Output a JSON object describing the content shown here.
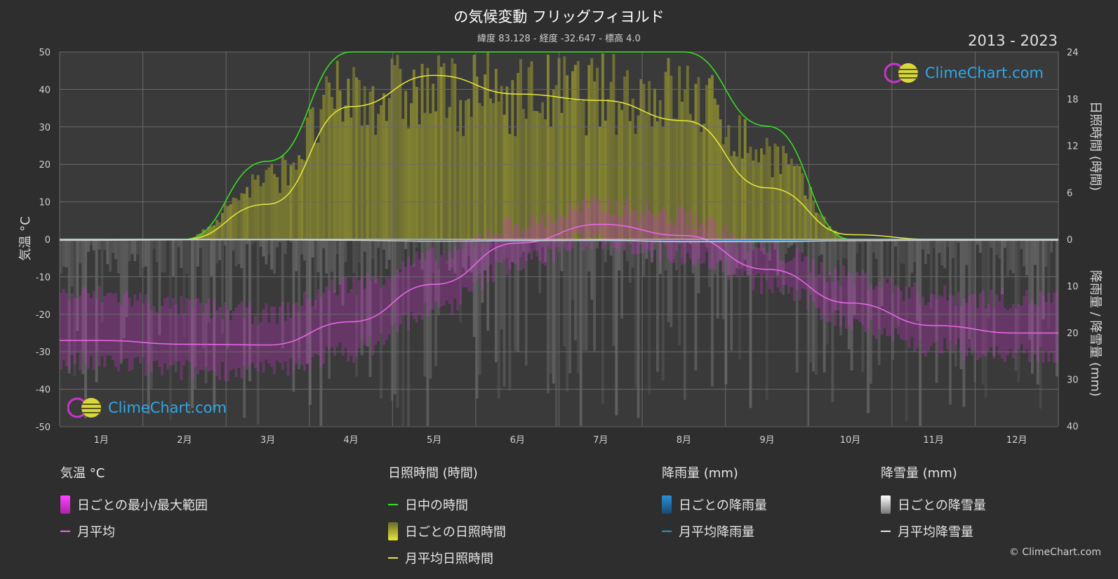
{
  "header": {
    "title": "の気候変動 フリッグフィヨルド",
    "subtitle": "緯度 83.128 - 経度 -32.647 - 標高 4.0",
    "years": "2013 - 2023"
  },
  "axes": {
    "left_label": "気温 °C",
    "right_top_label": "日照時間 (時間)",
    "right_bottom_label": "降雨量 / 降雪量 (mm)",
    "months": [
      "1月",
      "2月",
      "3月",
      "4月",
      "5月",
      "6月",
      "7月",
      "8月",
      "9月",
      "10月",
      "11月",
      "12月"
    ],
    "left_ticks": [
      "50",
      "40",
      "30",
      "20",
      "10",
      "0",
      "-10",
      "-20",
      "-30",
      "-40",
      "-50"
    ],
    "right_top_ticks": [
      "24",
      "18",
      "12",
      "6",
      "0"
    ],
    "right_bottom_ticks": [
      "10",
      "20",
      "30",
      "40"
    ]
  },
  "colors": {
    "background": "#2e2e2e",
    "plot_bg": "#3a3a3a",
    "daylight": "#35e61e",
    "sunshine_line": "#e8e83a",
    "sunshine_fill": "#8e8e30",
    "temp_line": "#ee66ee",
    "temp_range": "#cc33cc",
    "rain": "#2a8ed8",
    "snow": "#bbbbbb",
    "brand": "#2fa8e8"
  },
  "chart_data": {
    "type": "line",
    "x": [
      "1月",
      "2月",
      "3月",
      "4月",
      "5月",
      "6月",
      "7月",
      "8月",
      "9月",
      "10月",
      "11月",
      "12月"
    ],
    "series": [
      {
        "name": "日中の時間",
        "axis": "sunshine_hours",
        "values": [
          0,
          0,
          10.0,
          24,
          24,
          24,
          24,
          24,
          14.5,
          0,
          0,
          0
        ]
      },
      {
        "name": "月平均日照時間",
        "axis": "sunshine_hours",
        "values": [
          0,
          0,
          4.5,
          17.0,
          21.0,
          18.6,
          17.8,
          15.2,
          6.6,
          0.6,
          0,
          0
        ]
      },
      {
        "name": "月平均",
        "axis": "temperature",
        "values": [
          -27,
          -28,
          -28.2,
          -22,
          -12,
          -1,
          4,
          1,
          -8,
          -17,
          -23,
          -25
        ]
      },
      {
        "name": "月平均降雨量",
        "axis": "precipitation",
        "values": [
          0,
          0,
          0,
          0,
          0,
          0.1,
          0.3,
          0.4,
          0.2,
          0,
          0,
          0
        ]
      },
      {
        "name": "月平均降雪量",
        "axis": "precipitation",
        "values": [
          0.2,
          0.1,
          0.1,
          0.2,
          0.4,
          0.3,
          0.2,
          0.5,
          0.5,
          0.3,
          0.2,
          0.2
        ]
      }
    ],
    "temp_range": {
      "name": "日ごとの最小/最大範囲",
      "min": [
        -33,
        -35,
        -35,
        -30,
        -19,
        -6,
        0,
        -4,
        -12,
        -22,
        -29,
        -31
      ],
      "max": [
        -15,
        -18,
        -20,
        -12,
        -5,
        4,
        9,
        6,
        -3,
        -10,
        -15,
        -16
      ]
    },
    "ylim_temperature": [
      -50,
      50
    ],
    "ylim_sunshine": [
      0,
      24
    ],
    "ylim_precipitation": [
      0,
      40
    ],
    "grid": true
  },
  "legend": {
    "temp": {
      "head": "気温 °C",
      "items": [
        "日ごとの最小/最大範囲",
        "月平均"
      ]
    },
    "sun": {
      "head": "日照時間 (時間)",
      "items": [
        "日中の時間",
        "日ごとの日照時間",
        "月平均日照時間"
      ]
    },
    "rain": {
      "head": "降雨量 (mm)",
      "items": [
        "日ごとの降雨量",
        "月平均降雨量"
      ]
    },
    "snow": {
      "head": "降雪量 (mm)",
      "items": [
        "日ごとの降雪量",
        "月平均降雪量"
      ]
    }
  },
  "brand": {
    "logo_text": "ClimeChart.com",
    "copyright": "© ClimeChart.com"
  }
}
